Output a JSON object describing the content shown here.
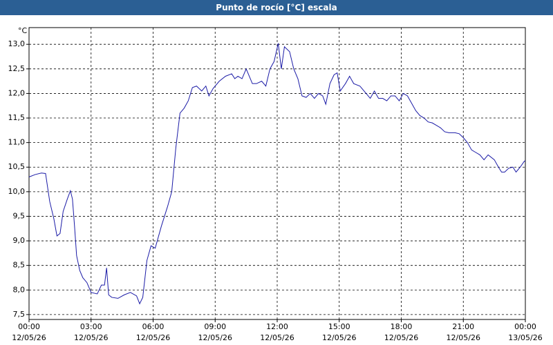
{
  "chart_data": {
    "type": "line",
    "title": "Punto de rocío [°C] escala",
    "y_unit": "°C",
    "xlim": [
      0,
      24
    ],
    "xticks": [
      {
        "value": 0,
        "label": "00:00"
      },
      {
        "value": 3,
        "label": "03:00"
      },
      {
        "value": 6,
        "label": "06:00"
      },
      {
        "value": 9,
        "label": "09:00"
      },
      {
        "value": 12,
        "label": "12:00"
      },
      {
        "value": 15,
        "label": "15:00"
      },
      {
        "value": 18,
        "label": "18:00"
      },
      {
        "value": 21,
        "label": "21:00"
      },
      {
        "value": 24,
        "label": "00:00"
      }
    ],
    "xtick_dates": [
      "12/05/26",
      "12/05/26",
      "12/05/26",
      "12/05/26",
      "12/05/26",
      "12/05/26",
      "12/05/26",
      "12/05/26",
      "13/05/26"
    ],
    "ylim": [
      7.4,
      13.34
    ],
    "yticks": [
      {
        "value": 7.5,
        "label": "7,5"
      },
      {
        "value": 8,
        "label": "8,0"
      },
      {
        "value": 8.5,
        "label": "8,5"
      },
      {
        "value": 9,
        "label": "9,0"
      },
      {
        "value": 9.5,
        "label": "9,5"
      },
      {
        "value": 10,
        "label": "10,0"
      },
      {
        "value": 10.5,
        "label": "10,5"
      },
      {
        "value": 11,
        "label": "11,0"
      },
      {
        "value": 11.5,
        "label": "11,5"
      },
      {
        "value": 12,
        "label": "12,0"
      },
      {
        "value": 12.5,
        "label": "12,5"
      },
      {
        "value": 13,
        "label": "13,0"
      }
    ],
    "grid": true,
    "color": "#1a1aa6",
    "x": [
      0,
      0.3,
      0.6,
      0.8,
      1.0,
      1.2,
      1.35,
      1.5,
      1.65,
      1.85,
      2.0,
      2.1,
      2.2,
      2.3,
      2.45,
      2.6,
      2.8,
      3.0,
      3.3,
      3.5,
      3.65,
      3.75,
      3.85,
      4.0,
      4.3,
      4.6,
      4.9,
      5.2,
      5.35,
      5.5,
      5.7,
      5.9,
      6.1,
      6.4,
      6.7,
      6.9,
      7.1,
      7.3,
      7.5,
      7.7,
      7.9,
      8.1,
      8.35,
      8.55,
      8.7,
      8.9,
      9.2,
      9.5,
      9.8,
      9.95,
      10.1,
      10.3,
      10.5,
      10.8,
      11.0,
      11.25,
      11.45,
      11.65,
      11.85,
      12.05,
      12.2,
      12.35,
      12.6,
      12.8,
      13.0,
      13.2,
      13.4,
      13.6,
      13.8,
      14.0,
      14.2,
      14.35,
      14.55,
      14.75,
      14.9,
      15.05,
      15.3,
      15.5,
      15.7,
      16.0,
      16.3,
      16.5,
      16.7,
      16.9,
      17.1,
      17.3,
      17.5,
      17.7,
      17.9,
      18.1,
      18.3,
      18.5,
      18.7,
      18.9,
      19.1,
      19.3,
      19.5,
      19.7,
      19.9,
      20.1,
      20.3,
      20.6,
      20.8,
      21.0,
      21.2,
      21.4,
      21.6,
      21.8,
      22.0,
      22.2,
      22.5,
      22.7,
      22.85,
      23.0,
      23.2,
      23.4,
      23.55,
      23.75,
      23.95,
      24.0
    ],
    "values": [
      10.3,
      10.35,
      10.38,
      10.37,
      9.8,
      9.45,
      9.1,
      9.15,
      9.6,
      9.85,
      10.02,
      9.85,
      9.3,
      8.7,
      8.4,
      8.25,
      8.15,
      7.95,
      7.92,
      8.1,
      8.1,
      8.45,
      7.9,
      7.85,
      7.83,
      7.9,
      7.95,
      7.88,
      7.72,
      7.85,
      8.6,
      8.9,
      8.85,
      9.3,
      9.7,
      10.0,
      10.9,
      11.6,
      11.7,
      11.85,
      12.12,
      12.15,
      12.05,
      12.15,
      11.95,
      12.1,
      12.25,
      12.35,
      12.4,
      12.3,
      12.35,
      12.3,
      12.5,
      12.2,
      12.2,
      12.25,
      12.15,
      12.5,
      12.65,
      13.02,
      12.5,
      12.95,
      12.85,
      12.5,
      12.3,
      11.95,
      11.92,
      12.0,
      11.9,
      12.0,
      11.95,
      11.78,
      12.2,
      12.38,
      12.42,
      12.05,
      12.2,
      12.35,
      12.2,
      12.15,
      12.0,
      11.9,
      12.05,
      11.9,
      11.9,
      11.85,
      11.95,
      11.95,
      11.85,
      12.0,
      11.95,
      11.8,
      11.65,
      11.55,
      11.5,
      11.42,
      11.4,
      11.35,
      11.3,
      11.22,
      11.2,
      11.2,
      11.18,
      11.1,
      11.0,
      10.85,
      10.8,
      10.75,
      10.65,
      10.75,
      10.65,
      10.5,
      10.4,
      10.4,
      10.48,
      10.5,
      10.4,
      10.5,
      10.62,
      10.63
    ]
  }
}
